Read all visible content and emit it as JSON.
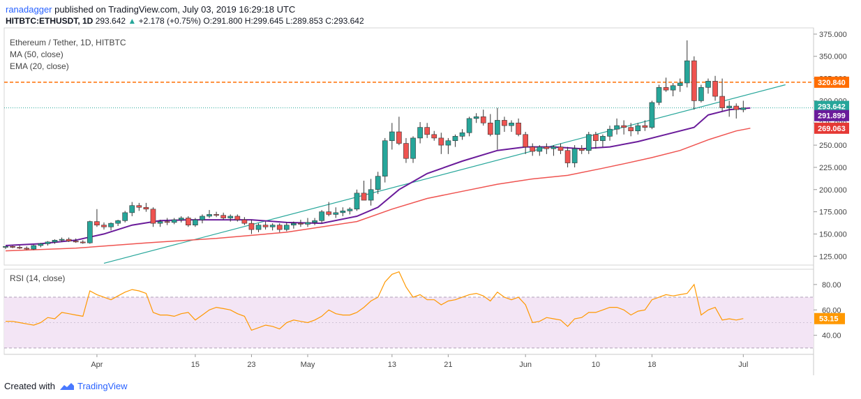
{
  "header": {
    "author": "ranadagger",
    "published_text": " published on TradingView.com, July 03, 2019 16:29:18 UTC"
  },
  "ticker": {
    "symbol": "HITBTC:ETHUSDT, 1D",
    "last": "293.642",
    "change_icon": "triangle-up-icon",
    "change": "+2.178 (+0.75%)",
    "open": "O:291.800",
    "high": "H:299.645",
    "low": "L:289.853",
    "close": "C:293.642"
  },
  "legend": {
    "title": "Ethereum / Tether, 1D, HITBTC",
    "ma": "MA (50, close)",
    "ema": "EMA (20, close)",
    "rsi": "RSI (14, close)"
  },
  "footer": {
    "created": "Created with",
    "brand": "TradingView",
    "logo_icon": "tradingview-logo-icon"
  },
  "colors": {
    "bull": "#26a69a",
    "bear": "#ef5350",
    "ma": "#ef5350",
    "ema": "#6a1b9a",
    "trend": "#26a69a",
    "resistance": "#ff6d00",
    "rsi": "#ff9800",
    "rsi_band": "#f3e5f5"
  },
  "chart_data": {
    "type": "candlestick",
    "price_axis": {
      "ticks": [
        "375.000",
        "350.000",
        "325.000",
        "300.000",
        "275.000",
        "250.000",
        "225.000",
        "200.000",
        "175.000",
        "150.000",
        "125.000"
      ],
      "range": [
        115,
        382
      ]
    },
    "x_axis": {
      "labels": [
        {
          "text": "Apr",
          "index": 13
        },
        {
          "text": "15",
          "index": 27
        },
        {
          "text": "23",
          "index": 35
        },
        {
          "text": "May",
          "index": 43
        },
        {
          "text": "13",
          "index": 55
        },
        {
          "text": "21",
          "index": 63
        },
        {
          "text": "Jun",
          "index": 74
        },
        {
          "text": "10",
          "index": 84
        },
        {
          "text": "18",
          "index": 92
        },
        {
          "text": "Jul",
          "index": 105
        }
      ],
      "start_index": -0.2,
      "end_index": 115
    },
    "candles": [
      [
        135,
        136,
        133,
        136
      ],
      [
        136,
        137,
        134,
        135
      ],
      [
        135,
        137,
        133,
        134
      ],
      [
        134,
        136,
        132,
        133
      ],
      [
        133,
        138,
        132,
        137
      ],
      [
        137,
        140,
        135,
        139
      ],
      [
        139,
        142,
        137,
        141
      ],
      [
        141,
        144,
        139,
        143
      ],
      [
        143,
        146,
        141,
        144
      ],
      [
        144,
        146,
        141,
        142
      ],
      [
        142,
        145,
        140,
        141
      ],
      [
        141,
        143,
        139,
        140
      ],
      [
        140,
        165,
        139,
        164
      ],
      [
        164,
        178,
        158,
        160
      ],
      [
        160,
        163,
        155,
        158
      ],
      [
        158,
        163,
        154,
        162
      ],
      [
        162,
        166,
        159,
        165
      ],
      [
        165,
        176,
        163,
        174
      ],
      [
        174,
        186,
        170,
        182
      ],
      [
        182,
        185,
        176,
        180
      ],
      [
        180,
        185,
        175,
        178
      ],
      [
        178,
        180,
        158,
        162
      ],
      [
        162,
        166,
        158,
        164
      ],
      [
        164,
        168,
        160,
        163
      ],
      [
        163,
        168,
        161,
        166
      ],
      [
        166,
        170,
        163,
        168
      ],
      [
        168,
        170,
        158,
        160
      ],
      [
        160,
        168,
        158,
        166
      ],
      [
        166,
        172,
        162,
        170
      ],
      [
        170,
        177,
        168,
        172
      ],
      [
        172,
        175,
        169,
        171
      ],
      [
        171,
        174,
        166,
        168
      ],
      [
        168,
        172,
        164,
        170
      ],
      [
        170,
        172,
        164,
        166
      ],
      [
        166,
        169,
        160,
        162
      ],
      [
        162,
        166,
        150,
        155
      ],
      [
        155,
        162,
        152,
        160
      ],
      [
        160,
        164,
        155,
        158
      ],
      [
        158,
        162,
        154,
        160
      ],
      [
        160,
        162,
        152,
        155
      ],
      [
        155,
        163,
        153,
        160
      ],
      [
        160,
        164,
        156,
        162
      ],
      [
        162,
        166,
        158,
        161
      ],
      [
        161,
        168,
        158,
        163
      ],
      [
        163,
        168,
        160,
        165
      ],
      [
        165,
        177,
        162,
        175
      ],
      [
        175,
        186,
        170,
        172
      ],
      [
        172,
        180,
        168,
        174
      ],
      [
        174,
        180,
        170,
        176
      ],
      [
        176,
        180,
        172,
        178
      ],
      [
        178,
        200,
        176,
        196
      ],
      [
        196,
        210,
        190,
        188
      ],
      [
        188,
        212,
        182,
        200
      ],
      [
        200,
        220,
        195,
        215
      ],
      [
        215,
        258,
        208,
        255
      ],
      [
        255,
        275,
        245,
        265
      ],
      [
        265,
        282,
        250,
        252
      ],
      [
        252,
        258,
        230,
        235
      ],
      [
        235,
        260,
        230,
        258
      ],
      [
        258,
        276,
        252,
        270
      ],
      [
        270,
        275,
        258,
        262
      ],
      [
        262,
        266,
        255,
        258
      ],
      [
        258,
        264,
        240,
        250
      ],
      [
        250,
        258,
        240,
        255
      ],
      [
        255,
        262,
        248,
        260
      ],
      [
        260,
        268,
        256,
        264
      ],
      [
        264,
        282,
        260,
        280
      ],
      [
        280,
        286,
        275,
        282
      ],
      [
        282,
        290,
        272,
        275
      ],
      [
        275,
        285,
        260,
        262
      ],
      [
        262,
        292,
        245,
        278
      ],
      [
        278,
        282,
        265,
        272
      ],
      [
        272,
        278,
        265,
        275
      ],
      [
        275,
        280,
        260,
        262
      ],
      [
        262,
        265,
        240,
        248
      ],
      [
        248,
        252,
        238,
        243
      ],
      [
        243,
        250,
        238,
        248
      ],
      [
        248,
        252,
        240,
        246
      ],
      [
        246,
        250,
        238,
        248
      ],
      [
        248,
        252,
        240,
        244
      ],
      [
        244,
        248,
        225,
        230
      ],
      [
        230,
        250,
        225,
        246
      ],
      [
        246,
        250,
        240,
        244
      ],
      [
        244,
        265,
        240,
        262
      ],
      [
        262,
        265,
        246,
        255
      ],
      [
        255,
        262,
        248,
        260
      ],
      [
        260,
        272,
        255,
        268
      ],
      [
        268,
        280,
        262,
        272
      ],
      [
        272,
        278,
        262,
        270
      ],
      [
        270,
        275,
        260,
        266
      ],
      [
        266,
        275,
        262,
        272
      ],
      [
        272,
        278,
        266,
        270
      ],
      [
        270,
        300,
        268,
        298
      ],
      [
        298,
        318,
        295,
        315
      ],
      [
        315,
        326,
        310,
        312
      ],
      [
        312,
        320,
        305,
        317
      ],
      [
        317,
        325,
        310,
        320
      ],
      [
        320,
        368,
        315,
        345
      ],
      [
        345,
        350,
        290,
        300
      ],
      [
        300,
        318,
        298,
        315
      ],
      [
        315,
        325,
        308,
        322
      ],
      [
        322,
        328,
        300,
        305
      ],
      [
        305,
        325,
        288,
        292
      ],
      [
        292,
        300,
        282,
        294
      ],
      [
        294,
        297,
        280,
        290
      ],
      [
        290,
        300,
        287,
        292
      ]
    ],
    "ma50": [
      [
        0,
        131
      ],
      [
        10,
        134
      ],
      [
        20,
        140
      ],
      [
        30,
        145
      ],
      [
        40,
        152
      ],
      [
        45,
        158
      ],
      [
        50,
        164
      ],
      [
        55,
        178
      ],
      [
        60,
        190
      ],
      [
        65,
        198
      ],
      [
        70,
        206
      ],
      [
        75,
        212
      ],
      [
        80,
        216
      ],
      [
        85,
        224
      ],
      [
        88,
        229
      ],
      [
        92,
        236
      ],
      [
        96,
        244
      ],
      [
        100,
        256
      ],
      [
        104,
        266
      ],
      [
        106,
        269.063
      ]
    ],
    "ema20": [
      [
        0,
        137
      ],
      [
        5,
        139
      ],
      [
        10,
        143
      ],
      [
        14,
        150
      ],
      [
        18,
        160
      ],
      [
        22,
        165
      ],
      [
        26,
        166
      ],
      [
        30,
        166
      ],
      [
        35,
        166
      ],
      [
        40,
        163
      ],
      [
        45,
        162
      ],
      [
        50,
        170
      ],
      [
        53,
        180
      ],
      [
        56,
        200
      ],
      [
        60,
        218
      ],
      [
        65,
        232
      ],
      [
        70,
        244
      ],
      [
        74,
        248
      ],
      [
        78,
        248
      ],
      [
        82,
        246
      ],
      [
        86,
        248
      ],
      [
        90,
        254
      ],
      [
        94,
        262
      ],
      [
        98,
        270
      ],
      [
        100,
        284
      ],
      [
        103,
        290
      ],
      [
        106,
        291.899
      ]
    ],
    "trendline": {
      "from": [
        14,
        117
      ],
      "to": [
        111,
        318
      ]
    },
    "resistance": {
      "value": 320.84,
      "label": "320.840"
    },
    "price_labels": [
      {
        "text": "320.840",
        "value": 320.84
      },
      {
        "text": "293.642",
        "value": 293.642
      },
      {
        "text": "291.899",
        "value": 291.899
      },
      {
        "text": "269.063",
        "value": 269.063
      }
    ],
    "rsi": {
      "ticks": [
        "80.00",
        "60.00",
        "40.00"
      ],
      "range": [
        25,
        92
      ],
      "band": [
        30,
        70
      ],
      "last_label": "53.15",
      "values": [
        51,
        51,
        50,
        49,
        48,
        50,
        54,
        53,
        58,
        57,
        56,
        55,
        75,
        72,
        70,
        68,
        71,
        74,
        76,
        75,
        73,
        58,
        56,
        56,
        55,
        57,
        58,
        52,
        56,
        60,
        62,
        61,
        60,
        57,
        55,
        44,
        46,
        48,
        47,
        45,
        50,
        52,
        51,
        50,
        52,
        55,
        60,
        57,
        56,
        56,
        58,
        62,
        67,
        70,
        82,
        88,
        90,
        78,
        70,
        72,
        68,
        68,
        64,
        67,
        68,
        70,
        72,
        73,
        71,
        67,
        74,
        70,
        68,
        70,
        64,
        50,
        51,
        54,
        53,
        52,
        47,
        53,
        54,
        58,
        58,
        60,
        62,
        62,
        60,
        56,
        59,
        60,
        68,
        70,
        72,
        71,
        72,
        73,
        80,
        56,
        60,
        62,
        52,
        53,
        52,
        53.15
      ]
    }
  }
}
